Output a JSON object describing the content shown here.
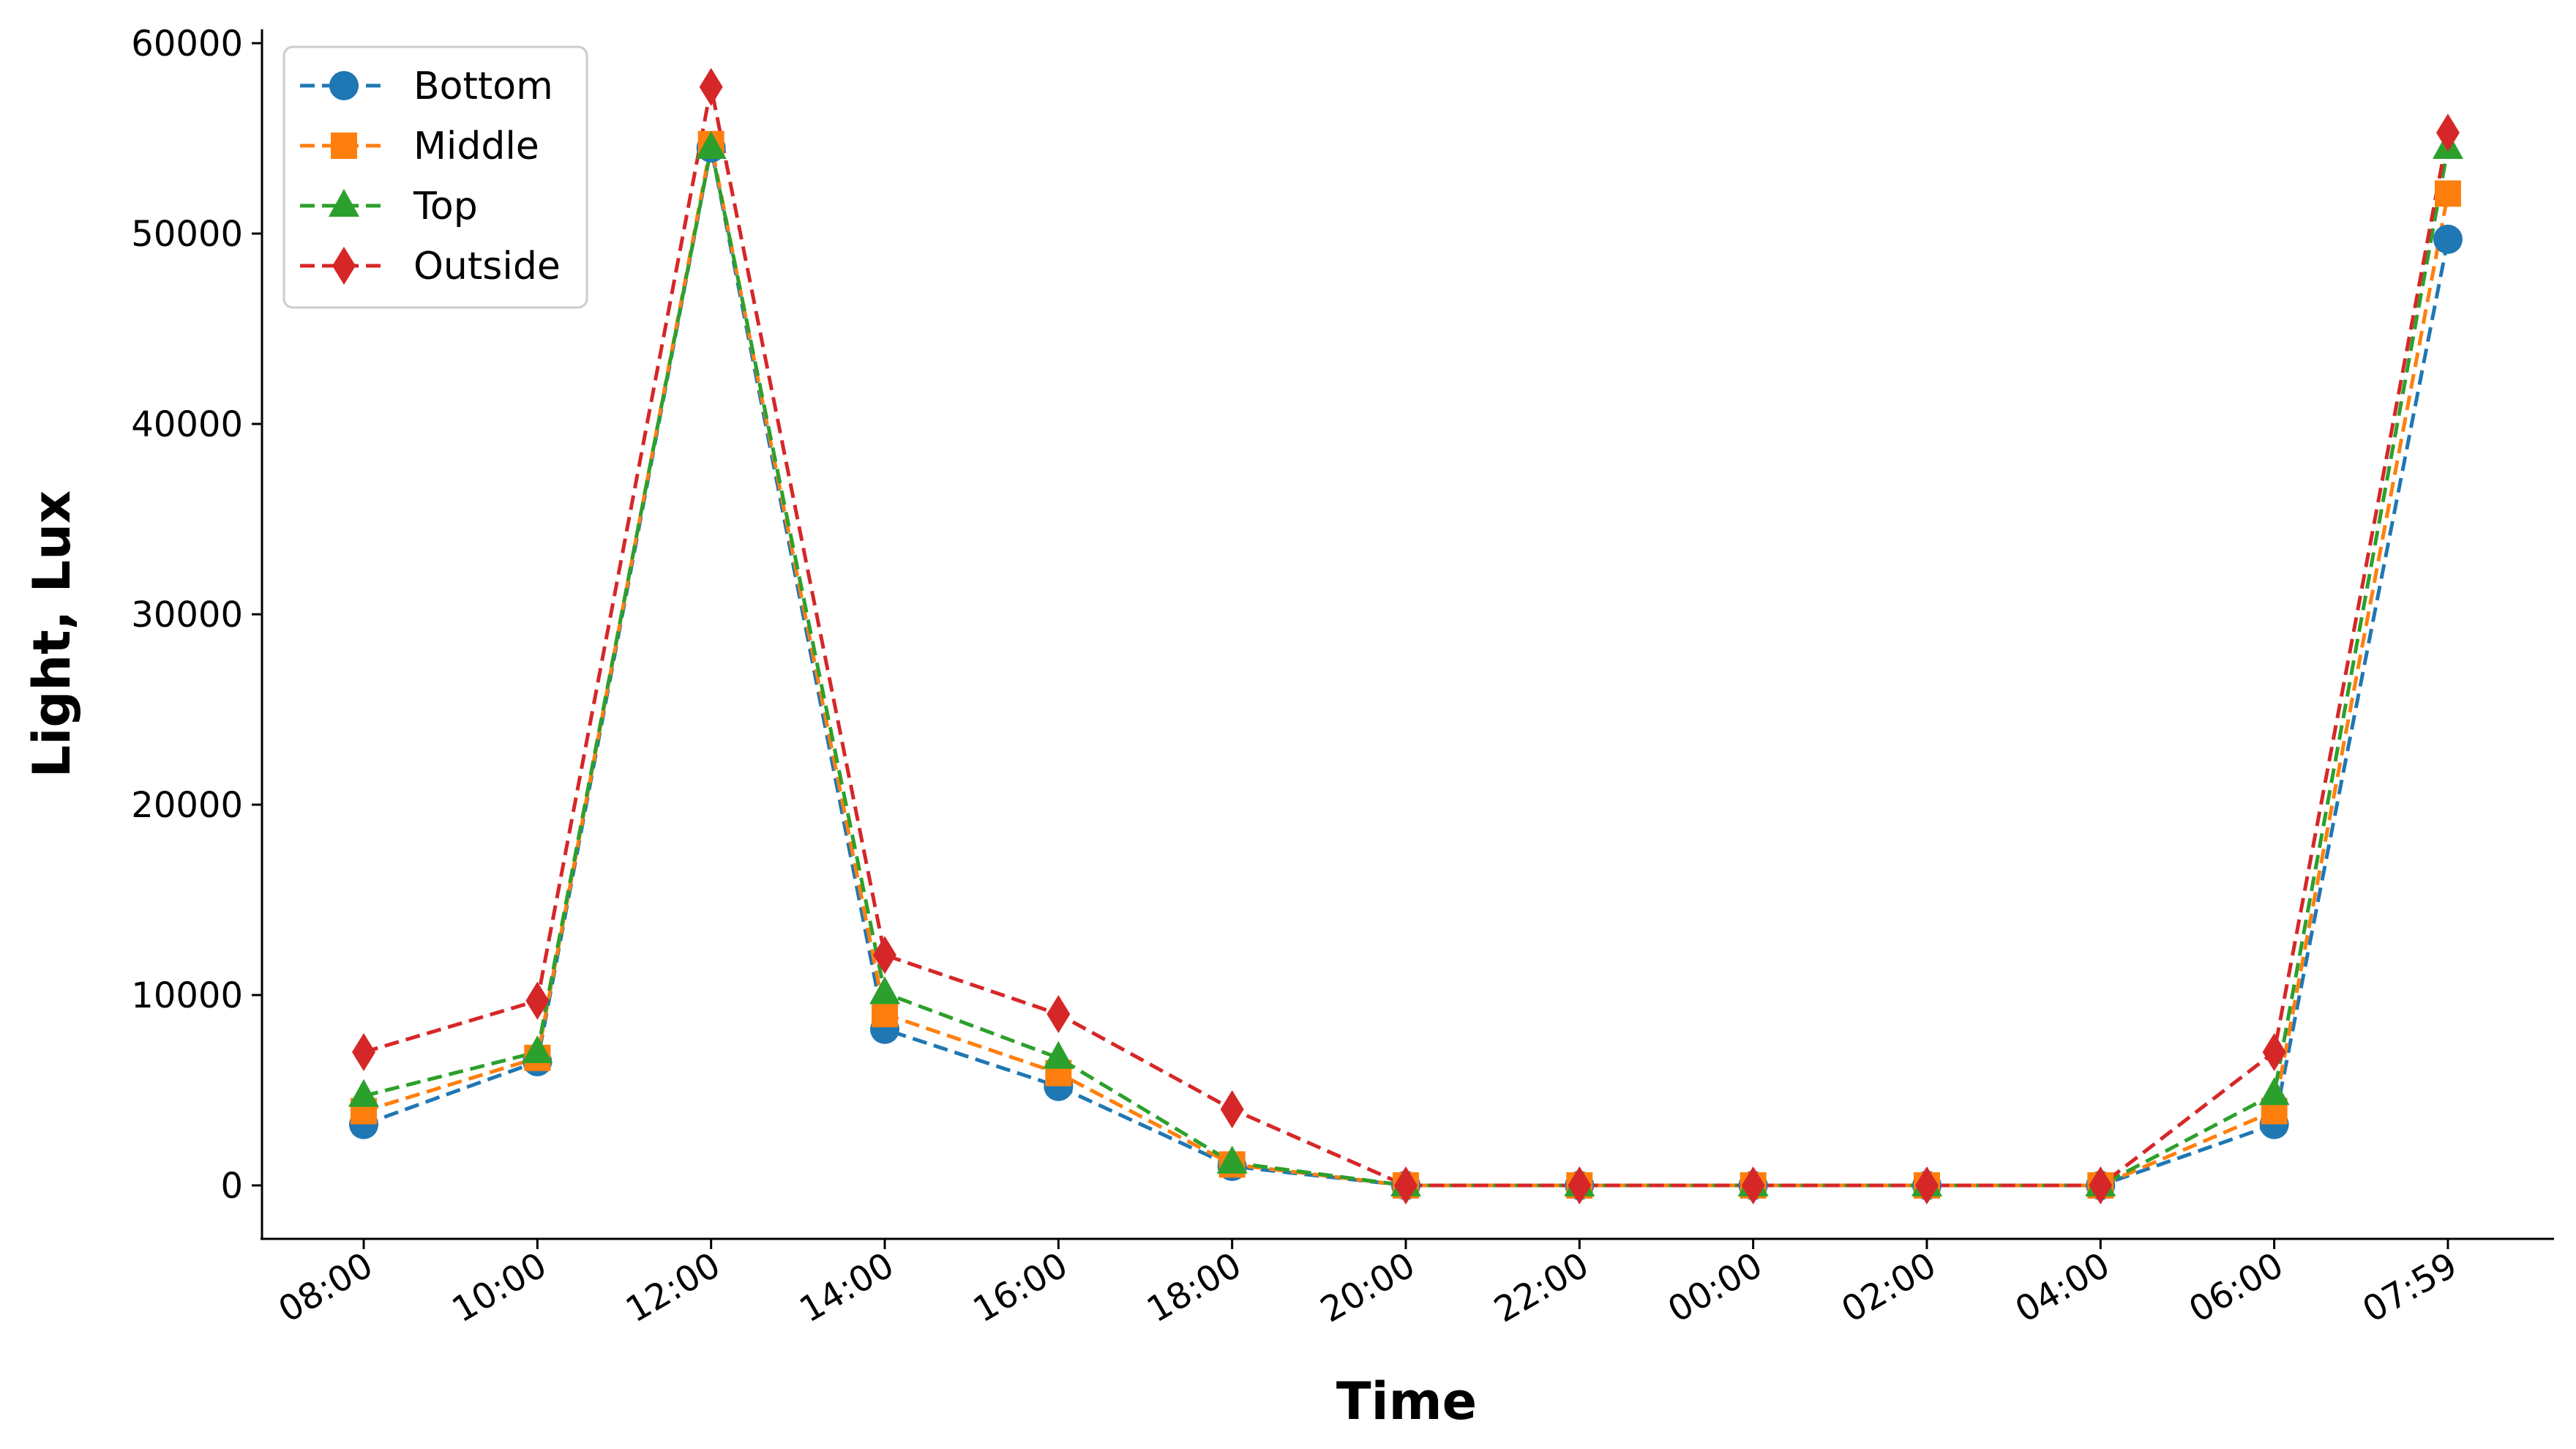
{
  "chart_data": {
    "type": "line",
    "title": "",
    "xlabel": "Time",
    "ylabel": "Light, Lux",
    "categories": [
      "08:00",
      "10:00",
      "12:00",
      "14:00",
      "16:00",
      "18:00",
      "20:00",
      "22:00",
      "00:00",
      "02:00",
      "04:00",
      "06:00",
      "07:59"
    ],
    "yticks": [
      "0",
      "10000",
      "20000",
      "30000",
      "40000",
      "50000",
      "60000"
    ],
    "ylim": [
      -2800,
      60500
    ],
    "grid": false,
    "legend_position": "top-left",
    "series": [
      {
        "name": "Bottom",
        "color": "#1f77b4",
        "marker": "circle",
        "values": [
          3200,
          6500,
          54500,
          8200,
          5200,
          1000,
          0,
          0,
          0,
          0,
          0,
          3200,
          49700
        ]
      },
      {
        "name": "Middle",
        "color": "#ff7f0e",
        "marker": "square",
        "values": [
          3900,
          6700,
          54700,
          9000,
          5900,
          1100,
          0,
          0,
          0,
          0,
          0,
          3900,
          52100
        ]
      },
      {
        "name": "Top",
        "color": "#2ca02c",
        "marker": "triangle",
        "values": [
          4700,
          7000,
          54500,
          10100,
          6700,
          1200,
          0,
          0,
          0,
          0,
          0,
          4800,
          54500
        ]
      },
      {
        "name": "Outside",
        "color": "#d62728",
        "marker": "diamond",
        "values": [
          7000,
          9700,
          57700,
          12100,
          9000,
          4000,
          0,
          0,
          0,
          0,
          0,
          7000,
          55300
        ]
      }
    ]
  }
}
